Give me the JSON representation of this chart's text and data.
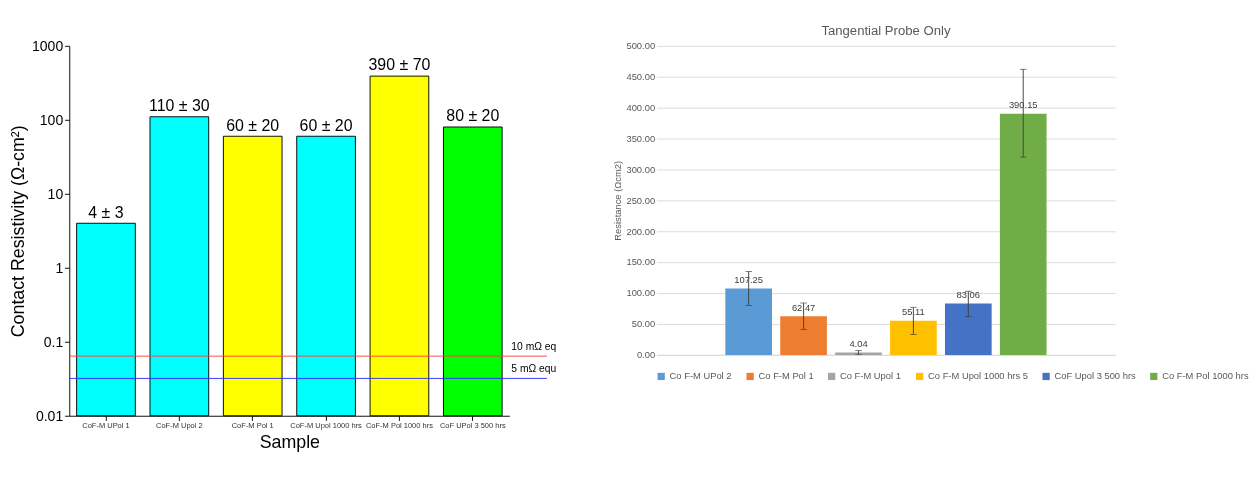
{
  "chart_data": [
    {
      "type": "bar",
      "categories": [
        "CoF-M UPol 1",
        "CoF-M Upol 2",
        "CoF-M Pol 1",
        "CoF-M Upol 1000 hrs",
        "CoF-M Pol 1000 hrs",
        "CoF UPol 3 500 hrs"
      ],
      "values": [
        4,
        110,
        60,
        60,
        390,
        80
      ],
      "colors": [
        "#00ffff",
        "#00ffff",
        "#ffff00",
        "#00ffff",
        "#ffff00",
        "#00ff00"
      ],
      "value_labels": [
        "4 ± 3",
        "110 ± 30",
        "60 ± 20",
        "60 ± 20",
        "390 ± 70",
        "80 ± 20"
      ],
      "xlabel": "Sample",
      "ylabel": "Contact Resistivity (Ω-cm²)",
      "log": true,
      "ylim": [
        0.01,
        1000
      ],
      "yticks": [
        0.01,
        0.1,
        1,
        10,
        100,
        1000
      ],
      "ref_lines": [
        {
          "axis": "y",
          "value": 0.064,
          "label": "10 mΩ eq",
          "color": "#ff4040"
        },
        {
          "axis": "y",
          "value": 0.032,
          "label": "5 mΩ equ",
          "color": "#3030ff"
        }
      ],
      "grid": false
    },
    {
      "type": "bar",
      "title": "Tangential Probe Only",
      "categories": [
        null
      ],
      "ylabel": "Resistance (Ωcm2)",
      "series": [
        {
          "name": "Co F-M UPol 2",
          "color": "#5b9bd5",
          "values": [
            107.25
          ],
          "errors": [
            [
              80,
              135
            ]
          ]
        },
        {
          "name": "Co F-M Pol 1",
          "color": "#ed7d31",
          "values": [
            62.47
          ],
          "errors": [
            [
              41,
              84
            ]
          ]
        },
        {
          "name": "Co F-M Upol 1",
          "color": "#a5a5a5",
          "values": [
            4.04
          ],
          "errors": [
            [
              1,
              7
            ]
          ]
        },
        {
          "name": "Co F-M Upol 1000 hrs 5",
          "color": "#ffc000",
          "values": [
            55.11
          ],
          "errors": [
            [
              33,
              77
            ]
          ]
        },
        {
          "name": "CoF Upol 3 500 hrs",
          "color": "#4472c4",
          "values": [
            83.06
          ],
          "errors": [
            [
              62,
              103
            ]
          ]
        },
        {
          "name": "Co F-M Pol 1000 hrs",
          "color": "#70ad47",
          "values": [
            390.15
          ],
          "errors": [
            [
              320,
              462
            ]
          ]
        }
      ],
      "ylim": [
        0,
        500
      ],
      "yticks": [
        {
          "value": 0,
          "label": "0.00"
        },
        {
          "value": 50,
          "label": "50.00"
        },
        {
          "value": 100,
          "label": "100.00"
        },
        {
          "value": 150,
          "label": "150.00"
        },
        {
          "value": 200,
          "label": "200.00"
        },
        {
          "value": 250,
          "label": "250.00"
        },
        {
          "value": 300,
          "label": "300.00"
        },
        {
          "value": 350,
          "label": "350.00"
        },
        {
          "value": 400,
          "label": "400.00"
        },
        {
          "value": 450,
          "label": "450.00"
        },
        {
          "value": 500,
          "label": "500.00"
        }
      ],
      "grid": "y",
      "legend": "bottom",
      "data_labels": true
    }
  ]
}
